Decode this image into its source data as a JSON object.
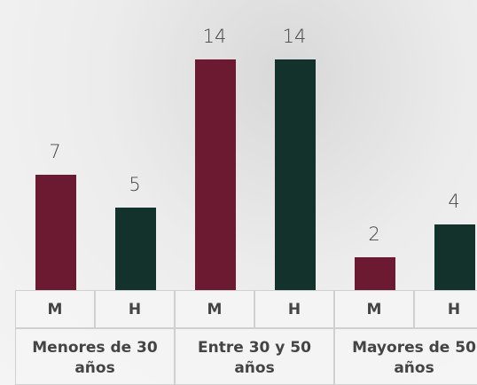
{
  "chart_data": {
    "type": "bar",
    "categories": [
      "Menores de 30 años",
      "Entre 30 y 50 años",
      "Mayores de 50 años"
    ],
    "series": [
      {
        "name": "M",
        "color": "#6b1a31",
        "values": [
          7,
          14,
          2
        ]
      },
      {
        "name": "H",
        "color": "#13322b",
        "values": [
          5,
          14,
          4
        ]
      }
    ]
  }
}
